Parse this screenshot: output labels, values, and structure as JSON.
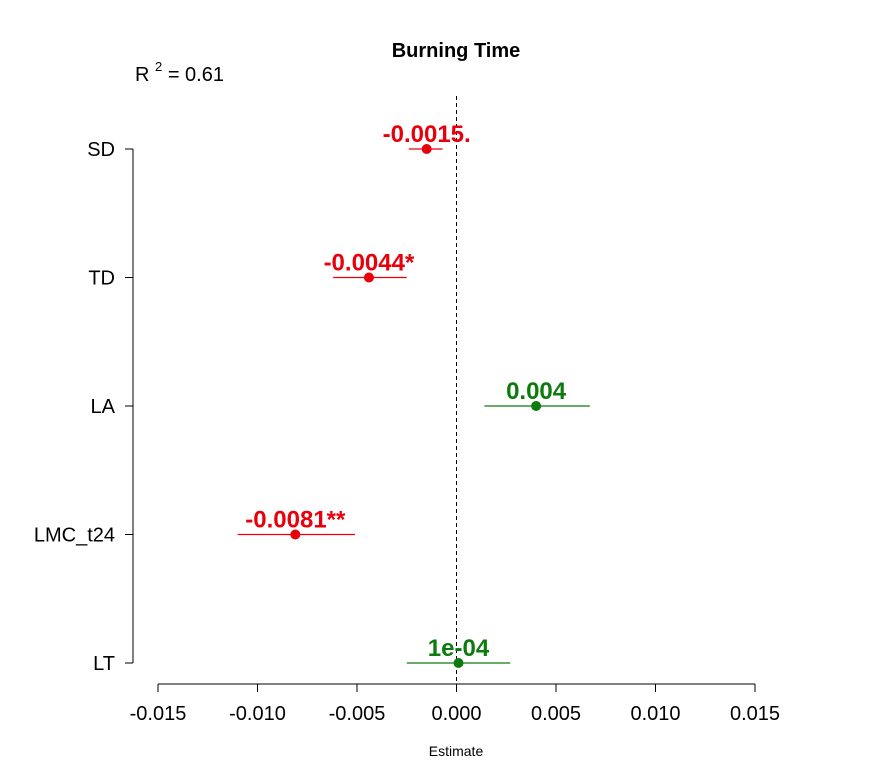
{
  "chart_data": {
    "type": "scatter",
    "title": "Burning Time",
    "xlabel": "Estimate",
    "ylabel": "",
    "annotation": {
      "r2_label": "R",
      "r2_exponent": "2",
      "r2_value": " = 0.61"
    },
    "xlim": [
      -0.015,
      0.015
    ],
    "x_ticks": [
      -0.015,
      -0.01,
      -0.005,
      0.0,
      0.005,
      0.01,
      0.015
    ],
    "x_tick_labels": [
      "-0.015",
      "-0.010",
      "-0.005",
      "0.000",
      "0.005",
      "0.010",
      "0.015"
    ],
    "reference_line": 0,
    "grid": false,
    "legend": "none",
    "points": [
      {
        "term": "SD",
        "estimate": -0.0015,
        "ci_low": -0.0024,
        "ci_high": -0.0007,
        "label": "-0.0015.",
        "color": "#e8000b"
      },
      {
        "term": "TD",
        "estimate": -0.0044,
        "ci_low": -0.0062,
        "ci_high": -0.0025,
        "label": "-0.0044*",
        "color": "#e8000b"
      },
      {
        "term": "LA",
        "estimate": 0.004,
        "ci_low": 0.0014,
        "ci_high": 0.0067,
        "label": "0.004",
        "color": "#0d7a0d"
      },
      {
        "term": "LMC_t24",
        "estimate": -0.0081,
        "ci_low": -0.011,
        "ci_high": -0.0051,
        "label": "-0.0081**",
        "color": "#e8000b"
      },
      {
        "term": "LT",
        "estimate": 0.0001,
        "ci_low": -0.0025,
        "ci_high": 0.0027,
        "label": "1e-04",
        "color": "#0d7a0d"
      }
    ]
  }
}
